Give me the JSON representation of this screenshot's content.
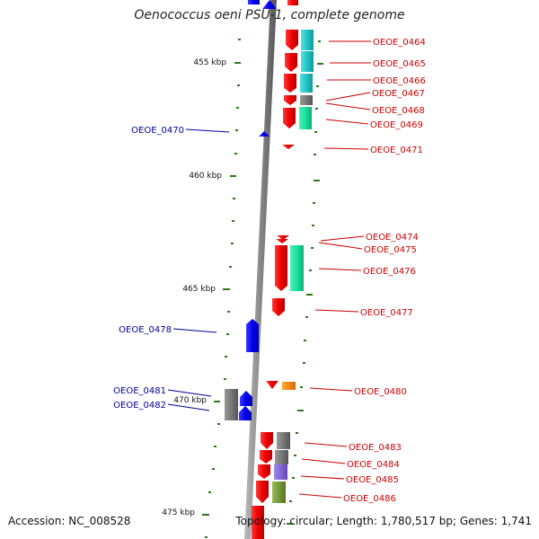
{
  "title": "Oenococcus oeni PSU-1, complete genome",
  "accession": "Accession: NC_008528",
  "summary": "Topology: circular; Length: 1,780,517 bp; Genes: 1,741",
  "kbp_labels": [
    "455 kbp",
    "460 kbp",
    "465 kbp",
    "470 kbp",
    "475 kbp"
  ],
  "gene_labels_right": [
    "OEOE_0464",
    "OEOE_0465",
    "OEOE_0466",
    "OEOE_0467",
    "OEOE_0468",
    "OEOE_0469",
    "OEOE_0471",
    "OEOE_0474",
    "OEOE_0475",
    "OEOE_0476",
    "OEOE_0477",
    "OEOE_0480",
    "OEOE_0483",
    "OEOE_0484",
    "OEOE_0485",
    "OEOE_0486"
  ],
  "gene_labels_left": [
    "OEOE_0470",
    "OEOE_0478",
    "OEOE_0481",
    "OEOE_0482"
  ],
  "colors": {
    "forward_gene": "#ff0000",
    "reverse_gene": "#0000ff",
    "label_right": "#cc0000",
    "label_left": "#000099",
    "ticks": "#2a7a1a",
    "backbone": "#8a8a8a",
    "cyan": "#33cccc",
    "teal": "#22e0a0",
    "gray": "#777777",
    "orange": "#ff8800",
    "violet": "#8866dd",
    "olive": "#779933"
  }
}
